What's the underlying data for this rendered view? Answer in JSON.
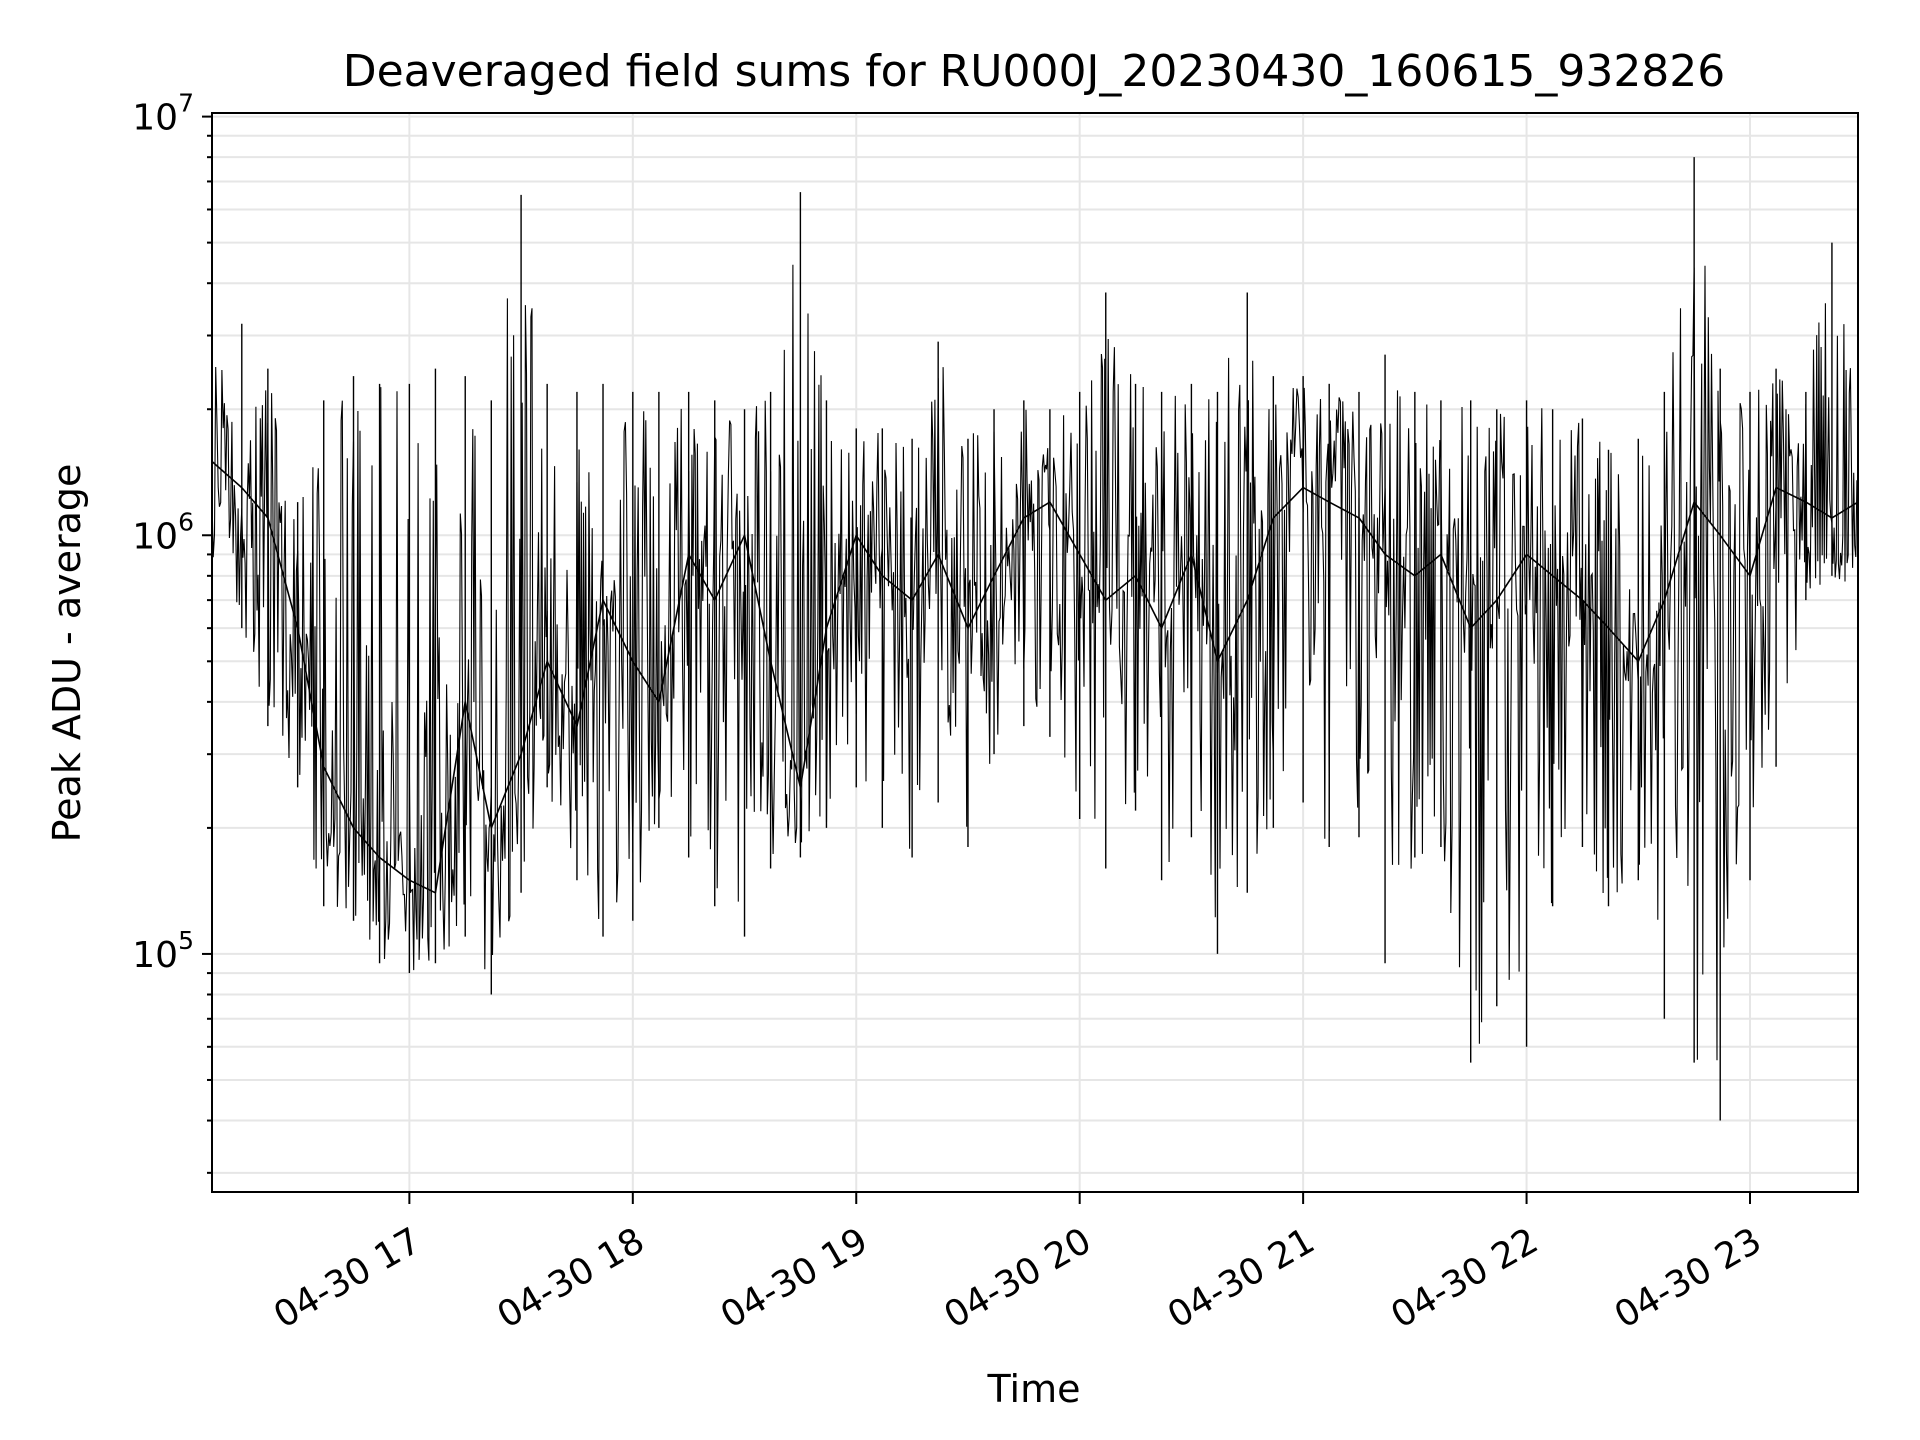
{
  "chart_data": {
    "type": "line",
    "title": "Deaveraged field sums for RU000J_20230430_160615_932826",
    "xlabel": "Time",
    "ylabel": "Peak ADU - average",
    "y_scale": "log",
    "ylim": [
      27000,
      10200000
    ],
    "xlim": [
      "2023-04-30 16:07",
      "2023-04-30 23:29"
    ],
    "x_ticks": [
      "04-30 17",
      "04-30 18",
      "04-30 19",
      "04-30 20",
      "04-30 21",
      "04-30 22",
      "04-30 23"
    ],
    "x_tick_times": [
      "2023-04-30 17:00",
      "2023-04-30 18:00",
      "2023-04-30 19:00",
      "2023-04-30 20:00",
      "2023-04-30 21:00",
      "2023-04-30 22:00",
      "2023-04-30 23:00"
    ],
    "y_ticks": [
      {
        "base": "10",
        "exp": "5",
        "value": 100000
      },
      {
        "base": "10",
        "exp": "6",
        "value": 1000000
      },
      {
        "base": "10",
        "exp": "7",
        "value": 10000000
      }
    ],
    "grid": true,
    "line_color": "#000000",
    "grid_color": "#e6e6e6",
    "series": [
      {
        "x": [
          "2023-04-30 16:07",
          "2023-04-30 16:15",
          "2023-04-30 16:22",
          "2023-04-30 16:30",
          "2023-04-30 16:37",
          "2023-04-30 16:45",
          "2023-04-30 16:52",
          "2023-04-30 17:00",
          "2023-04-30 17:07",
          "2023-04-30 17:15",
          "2023-04-30 17:22",
          "2023-04-30 17:30",
          "2023-04-30 17:37",
          "2023-04-30 17:45",
          "2023-04-30 17:52",
          "2023-04-30 18:00",
          "2023-04-30 18:07",
          "2023-04-30 18:15",
          "2023-04-30 18:22",
          "2023-04-30 18:30",
          "2023-04-30 18:37",
          "2023-04-30 18:45",
          "2023-04-30 18:52",
          "2023-04-30 19:00",
          "2023-04-30 19:07",
          "2023-04-30 19:15",
          "2023-04-30 19:22",
          "2023-04-30 19:30",
          "2023-04-30 19:37",
          "2023-04-30 19:45",
          "2023-04-30 19:52",
          "2023-04-30 20:00",
          "2023-04-30 20:07",
          "2023-04-30 20:15",
          "2023-04-30 20:22",
          "2023-04-30 20:30",
          "2023-04-30 20:37",
          "2023-04-30 20:45",
          "2023-04-30 20:52",
          "2023-04-30 21:00",
          "2023-04-30 21:07",
          "2023-04-30 21:15",
          "2023-04-30 21:22",
          "2023-04-30 21:30",
          "2023-04-30 21:37",
          "2023-04-30 21:45",
          "2023-04-30 21:52",
          "2023-04-30 22:00",
          "2023-04-30 22:07",
          "2023-04-30 22:15",
          "2023-04-30 22:22",
          "2023-04-30 22:30",
          "2023-04-30 22:37",
          "2023-04-30 22:45",
          "2023-04-30 22:52",
          "2023-04-30 23:00",
          "2023-04-30 23:07",
          "2023-04-30 23:15",
          "2023-04-30 23:22",
          "2023-04-30 23:29"
        ],
        "y": [
          1500000,
          1300000,
          1100000,
          600000,
          280000,
          200000,
          170000,
          150000,
          140000,
          400000,
          200000,
          300000,
          500000,
          350000,
          700000,
          500000,
          400000,
          900000,
          700000,
          1000000,
          500000,
          250000,
          600000,
          1000000,
          800000,
          700000,
          900000,
          600000,
          800000,
          1100000,
          1200000,
          900000,
          700000,
          800000,
          600000,
          900000,
          500000,
          700000,
          1100000,
          1300000,
          1200000,
          1100000,
          900000,
          800000,
          900000,
          600000,
          700000,
          900000,
          800000,
          700000,
          600000,
          500000,
          700000,
          1200000,
          1000000,
          800000,
          1300000,
          1200000,
          1100000,
          1200000
        ],
        "y_min": [
          900000,
          600000,
          350000,
          250000,
          130000,
          120000,
          95000,
          90000,
          95000,
          110000,
          80000,
          140000,
          250000,
          150000,
          110000,
          120000,
          200000,
          170000,
          130000,
          110000,
          160000,
          170000,
          200000,
          250000,
          200000,
          170000,
          230000,
          180000,
          300000,
          350000,
          330000,
          210000,
          160000,
          220000,
          150000,
          190000,
          100000,
          140000,
          200000,
          230000,
          180000,
          190000,
          95000,
          170000,
          180000,
          55000,
          75000,
          60000,
          130000,
          180000,
          130000,
          150000,
          70000,
          55000,
          40000,
          150000,
          280000,
          700000,
          800000,
          700000
        ],
        "y_max": [
          2600000,
          3200000,
          2500000,
          1200000,
          2100000,
          2400000,
          2300000,
          2300000,
          2500000,
          2400000,
          2100000,
          6500000,
          2300000,
          2200000,
          2300000,
          2200000,
          2200000,
          2200000,
          2100000,
          2000000,
          2200000,
          6600000,
          2100000,
          1800000,
          1800000,
          1700000,
          2900000,
          1700000,
          2000000,
          2100000,
          2000000,
          2200000,
          3800000,
          2300000,
          2200000,
          2300000,
          2200000,
          3800000,
          2400000,
          2400000,
          2300000,
          2200000,
          2700000,
          2200000,
          2100000,
          2100000,
          2000000,
          2100000,
          2000000,
          1900000,
          1600000,
          1700000,
          2200000,
          8000000,
          2500000,
          2200000,
          2500000,
          2200000,
          5000000,
          3400000
        ]
      }
    ]
  }
}
